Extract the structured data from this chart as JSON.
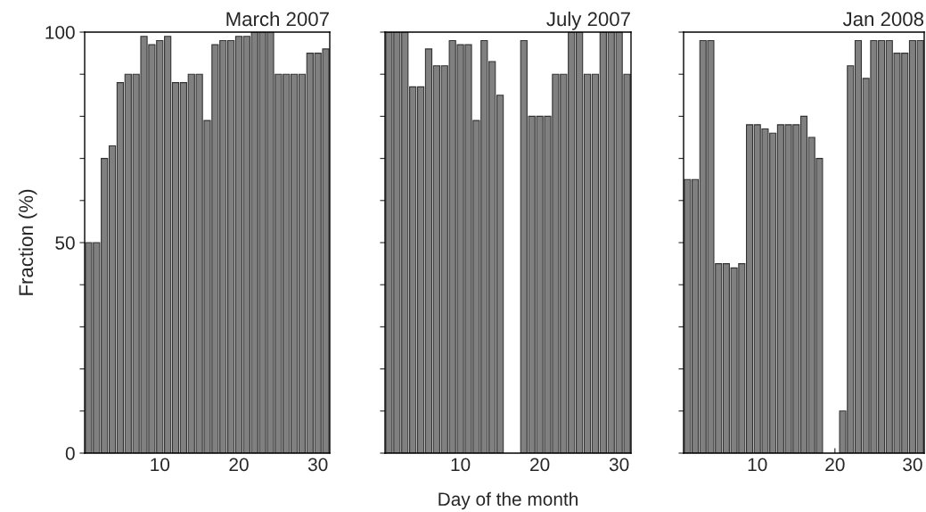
{
  "chart_data": [
    {
      "type": "bar",
      "title": "March 2007",
      "ylabel": "Fraction (%)",
      "x": [
        1,
        2,
        3,
        4,
        5,
        6,
        7,
        8,
        9,
        10,
        11,
        12,
        13,
        14,
        15,
        16,
        17,
        18,
        19,
        20,
        21,
        22,
        23,
        24,
        25,
        26,
        27,
        28,
        29,
        30,
        31
      ],
      "series": [
        {
          "color": "#808080",
          "values": [
            50,
            50,
            70,
            73,
            88,
            90,
            90,
            99,
            97,
            98,
            99,
            88,
            88,
            90,
            90,
            79,
            97,
            98,
            98,
            99,
            99,
            100,
            100,
            100,
            90,
            90,
            90,
            90,
            95,
            95,
            96
          ]
        }
      ],
      "xlim": [
        0.5,
        31.5
      ],
      "ylim": [
        0,
        100
      ],
      "xticks": [
        {
          "value": 5,
          "label": null
        },
        10,
        {
          "value": 15,
          "label": null
        },
        20,
        {
          "value": 25,
          "label": null
        },
        30
      ],
      "yticks": [
        0,
        {
          "value": 10,
          "label": null
        },
        {
          "value": 20,
          "label": null
        },
        {
          "value": 30,
          "label": null
        },
        {
          "value": 40,
          "label": null
        },
        50,
        {
          "value": 60,
          "label": null
        },
        {
          "value": 70,
          "label": null
        },
        {
          "value": 80,
          "label": null
        },
        {
          "value": 90,
          "label": null
        },
        100
      ],
      "grid": false,
      "legend": false
    },
    {
      "type": "bar",
      "title": "July 2007",
      "xlabel": "Day of the month",
      "x": [
        1,
        2,
        3,
        4,
        5,
        6,
        7,
        8,
        9,
        10,
        11,
        12,
        13,
        14,
        15,
        16,
        17,
        18,
        19,
        20,
        21,
        22,
        23,
        24,
        25,
        26,
        27,
        28,
        29,
        30,
        31
      ],
      "series": [
        {
          "color": "#808080",
          "values": [
            100,
            100,
            100,
            87,
            87,
            96,
            92,
            92,
            98,
            97,
            97,
            79,
            98,
            93,
            85,
            null,
            null,
            98,
            80,
            80,
            80,
            90,
            90,
            100,
            100,
            90,
            90,
            100,
            100,
            100,
            90
          ]
        }
      ],
      "xlim": [
        0.5,
        31.5
      ],
      "ylim": [
        0,
        100
      ],
      "xticks": [
        {
          "value": 5,
          "label": null
        },
        10,
        {
          "value": 15,
          "label": null
        },
        20,
        {
          "value": 25,
          "label": null
        },
        30
      ],
      "yticks": [
        {
          "value": 0,
          "label": null
        },
        {
          "value": 10,
          "label": null
        },
        {
          "value": 20,
          "label": null
        },
        {
          "value": 30,
          "label": null
        },
        {
          "value": 40,
          "label": null
        },
        {
          "value": 50,
          "label": null
        },
        {
          "value": 60,
          "label": null
        },
        {
          "value": 70,
          "label": null
        },
        {
          "value": 80,
          "label": null
        },
        {
          "value": 90,
          "label": null
        },
        {
          "value": 100,
          "label": null
        }
      ],
      "tick_labels": "x",
      "grid": false,
      "legend": false
    },
    {
      "type": "bar",
      "title": "Jan 2008",
      "x": [
        1,
        2,
        3,
        4,
        5,
        6,
        7,
        8,
        9,
        10,
        11,
        12,
        13,
        14,
        15,
        16,
        17,
        18,
        19,
        20,
        21,
        22,
        23,
        24,
        25,
        26,
        27,
        28,
        29,
        30,
        31
      ],
      "series": [
        {
          "color": "#808080",
          "values": [
            65,
            65,
            98,
            98,
            45,
            45,
            44,
            45,
            78,
            78,
            77,
            76,
            78,
            78,
            78,
            80,
            75,
            70,
            null,
            null,
            10,
            92,
            98,
            89,
            98,
            98,
            98,
            95,
            95,
            98,
            98
          ]
        }
      ],
      "xlim": [
        0.5,
        31.5
      ],
      "ylim": [
        0,
        100
      ],
      "xticks": [
        {
          "value": 5,
          "label": null
        },
        10,
        {
          "value": 15,
          "label": null
        },
        20,
        {
          "value": 25,
          "label": null
        },
        30
      ],
      "yticks": [
        {
          "value": 0,
          "label": null
        },
        {
          "value": 10,
          "label": null
        },
        {
          "value": 20,
          "label": null
        },
        {
          "value": 30,
          "label": null
        },
        {
          "value": 40,
          "label": null
        },
        {
          "value": 50,
          "label": null
        },
        {
          "value": 60,
          "label": null
        },
        {
          "value": 70,
          "label": null
        },
        {
          "value": 80,
          "label": null
        },
        {
          "value": 90,
          "label": null
        },
        {
          "value": 100,
          "label": null
        }
      ],
      "tick_labels": "x",
      "grid": false,
      "legend": false
    }
  ]
}
